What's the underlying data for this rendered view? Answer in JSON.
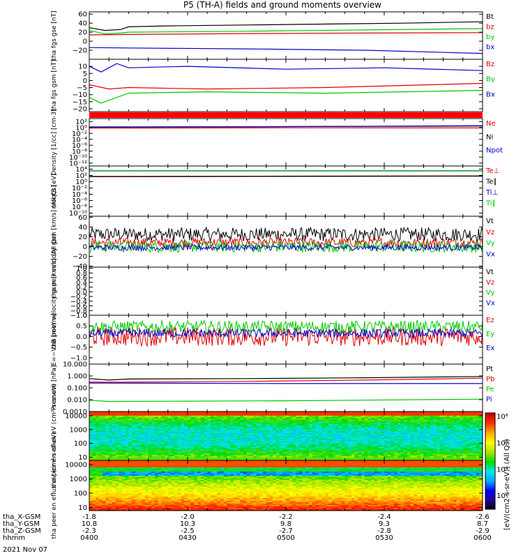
{
  "title": "P5 (TH-A) fields and ground moments overview",
  "date_label": "2021 Nov 07",
  "colorbar_label": "[eV/(cm2-s-sr-eV)] (All Qs)",
  "ephemeris": {
    "rows": [
      {
        "label": "tha_X-GSM",
        "values": [
          "-1.8",
          "-2.0",
          "-2.2",
          "-2.4",
          "-2.6"
        ]
      },
      {
        "label": "tha_Y-GSM",
        "values": [
          "10.8",
          "10.3",
          "9.8",
          "9.3",
          "8.7"
        ]
      },
      {
        "label": "tha_Z-GSM",
        "values": [
          "-2.3",
          "-2.5",
          "-2.7",
          "-2.8",
          "-2.9"
        ]
      },
      {
        "label": "hhmm",
        "values": [
          "0400",
          "0430",
          "0500",
          "0530",
          "0600"
        ]
      }
    ]
  },
  "chart_data": [
    {
      "type": "line",
      "ylabel": "tha fgs gse [nT]",
      "ylim": [
        -40,
        65
      ],
      "yticks": [
        -20,
        0,
        20,
        40,
        60
      ],
      "ytick_labels": [
        "−20",
        "0",
        "20",
        "40",
        "60"
      ],
      "series": [
        {
          "name": "Bt",
          "color": "#000000",
          "x": [
            0,
            0.04,
            0.08,
            0.1,
            0.2,
            0.4,
            0.6,
            0.8,
            1.0
          ],
          "values": [
            30,
            24,
            26,
            32,
            34,
            36,
            38,
            40,
            43
          ]
        },
        {
          "name": "bz",
          "color": "#e00000",
          "x": [
            0,
            0.1,
            0.4,
            0.7,
            1.0
          ],
          "values": [
            14,
            15,
            17,
            18,
            19
          ]
        },
        {
          "name": "by",
          "color": "#00c800",
          "x": [
            0,
            0.04,
            0.08,
            0.1,
            0.4,
            0.7,
            1.0
          ],
          "values": [
            24,
            16,
            18,
            20,
            22,
            25,
            28
          ]
        },
        {
          "name": "bx",
          "color": "#0000d0",
          "x": [
            0,
            0.1,
            0.4,
            0.7,
            1.0
          ],
          "values": [
            -14,
            -15,
            -17,
            -20,
            -27
          ]
        }
      ]
    },
    {
      "type": "line",
      "ylabel": "tha fgs gsm [nT]",
      "ylim": [
        -22,
        15
      ],
      "yticks": [
        -20,
        -15,
        -10,
        -5,
        0,
        5,
        10
      ],
      "ytick_labels": [
        "−20",
        "−15",
        "−10",
        "−5",
        "0",
        "5",
        "10"
      ],
      "series": [
        {
          "name": "Bz",
          "color": "#e00000",
          "x": [
            0,
            0.05,
            0.1,
            0.3,
            0.6,
            1.0
          ],
          "values": [
            -3,
            -6,
            -5,
            -6,
            -5,
            -2
          ]
        },
        {
          "name": "By",
          "color": "#00c800",
          "x": [
            0,
            0.03,
            0.06,
            0.1,
            0.3,
            0.6,
            1.0
          ],
          "values": [
            -12,
            -16,
            -13,
            -9,
            -8,
            -9,
            -7
          ]
        },
        {
          "name": "Bx",
          "color": "#0000d0",
          "x": [
            0,
            0.03,
            0.07,
            0.1,
            0.25,
            0.5,
            0.75,
            1.0
          ],
          "values": [
            10,
            6,
            12,
            9,
            10,
            8,
            9,
            7
          ]
        }
      ]
    },
    {
      "type": "line",
      "ylabel": "Density [1/cc] [cm-3]",
      "yscale": "log",
      "ylim": [
        1e-13,
        1000
      ],
      "yticks": [
        1e-12,
        1e-10,
        1e-08,
        1e-06,
        0.0001,
        0.01,
        1,
        100
      ],
      "ytick_labels": [
        "10⁻¹²",
        "10⁻¹⁰",
        "10⁻⁸",
        "10⁻⁶",
        "10⁻⁴",
        "10⁻²",
        "10⁰",
        "10²"
      ],
      "series": [
        {
          "name": "Ne",
          "color": "#e00000",
          "x": [
            0,
            0.5,
            1.0
          ],
          "values": [
            0.6,
            0.8,
            0.7
          ]
        },
        {
          "name": "Ni",
          "color": "#000000",
          "x": [
            0,
            0.5,
            1.0
          ],
          "values": [
            1.5,
            2,
            3
          ]
        },
        {
          "name": "Npot",
          "color": "#0000d0",
          "x": [
            0,
            0.5,
            1.0
          ],
          "values": [
            1.2,
            2,
            4
          ]
        }
      ]
    },
    {
      "type": "line",
      "ylabel": "moqt3 [eV]",
      "yscale": "log",
      "ylim": [
        1e-11,
        100000.0
      ],
      "yticks": [
        1e-10,
        1e-08,
        1e-06,
        0.0001,
        0.01,
        1,
        100,
        10000
      ],
      "ytick_labels": [
        "10⁻¹⁰",
        "10⁻⁸",
        "10⁻⁶",
        "10⁻⁴",
        "10⁻²",
        "10⁰",
        "10²",
        "10⁴"
      ],
      "series": [
        {
          "name": "Te⊥",
          "color": "#e00000",
          "x": [
            0,
            0.5,
            1.0
          ],
          "values": [
            50,
            60,
            70
          ]
        },
        {
          "name": "Te∥",
          "color": "#000000",
          "x": [
            0,
            0.5,
            1.0
          ],
          "values": [
            40,
            50,
            60
          ]
        },
        {
          "name": "Ti⊥",
          "color": "#0000d0",
          "x": [
            0,
            0.5,
            1.0
          ],
          "values": [
            3000,
            3000,
            3000
          ]
        },
        {
          "name": "Ti∥",
          "color": "#00c800",
          "x": [
            0,
            0.5,
            1.0
          ],
          "values": [
            2500,
            2500,
            2500
          ]
        }
      ]
    },
    {
      "type": "line",
      "ylabel": "tha peir velocity gsm [km/s] (All Qs)",
      "ylim": [
        -42,
        62
      ],
      "yticks": [
        -40,
        -20,
        0,
        20,
        40,
        60
      ],
      "ytick_labels": [
        "−40",
        "−20",
        "0",
        "20",
        "40",
        "60"
      ],
      "series": [
        {
          "name": "Vt",
          "color": "#000000",
          "noise": true,
          "center": 25,
          "amp": 14
        },
        {
          "name": "Vz",
          "color": "#e00000",
          "noise": true,
          "center": 8,
          "amp": 10
        },
        {
          "name": "Vy",
          "color": "#00c800",
          "noise": true,
          "center": 0,
          "amp": 12
        },
        {
          "name": "Vx",
          "color": "#0000d0",
          "noise": true,
          "center": -2,
          "amp": 6
        }
      ]
    },
    {
      "type": "line",
      "ylabel": "tha peer velocity gsm [km/s] (All Qs)",
      "ylim": [
        -1,
        1.05
      ],
      "yticks": [
        -1,
        -0.8,
        -0.6,
        -0.4,
        -0.2,
        0,
        0.2,
        0.4,
        0.6,
        0.8,
        1.0
      ],
      "ytick_labels": [
        "−1.0",
        "−0.8",
        "−0.6",
        "−0.4",
        "−0.2",
        "0.0",
        "0.2",
        "0.4",
        "0.6",
        "0.8",
        "1.0"
      ],
      "series": [
        {
          "name": "Vt",
          "color": "#000000",
          "x": [],
          "values": []
        },
        {
          "name": "Vz",
          "color": "#e00000",
          "x": [],
          "values": []
        },
        {
          "name": "Vy",
          "color": "#00c800",
          "x": [],
          "values": []
        },
        {
          "name": "Vx",
          "color": "#0000d0",
          "x": [],
          "values": []
        }
      ]
    },
    {
      "type": "line",
      "ylabel": "E=−VxB [mV/m]",
      "ylim": [
        -1.3,
        1.0
      ],
      "yticks": [
        -1.0,
        -0.5,
        0,
        0.5,
        1.0
      ],
      "ytick_labels": [
        "−1.0",
        "−0.5",
        "0.0",
        "0.5",
        "1.0"
      ],
      "series": [
        {
          "name": "Ez",
          "color": "#e00000",
          "noise": true,
          "center": 0.0,
          "amp": 0.45
        },
        {
          "name": "Ey",
          "color": "#00c800",
          "noise": true,
          "center": 0.45,
          "amp": 0.3
        },
        {
          "name": "Ex",
          "color": "#0000d0",
          "noise": true,
          "center": 0.15,
          "amp": 0.2
        }
      ]
    },
    {
      "type": "line",
      "ylabel": "Pressure [nPa]",
      "yscale": "log",
      "ylim": [
        0.001,
        10
      ],
      "yticks": [
        0.001,
        0.01,
        0.1,
        1,
        10
      ],
      "ytick_labels": [
        "0.0010",
        "0.010",
        "0.100",
        "1.000",
        "10.000"
      ],
      "series": [
        {
          "name": "Pt",
          "color": "#000000",
          "x": [
            0,
            0.05,
            0.1,
            0.4,
            0.7,
            1.0
          ],
          "values": [
            0.6,
            0.45,
            0.55,
            0.6,
            0.7,
            0.9
          ]
        },
        {
          "name": "Pb",
          "color": "#e00000",
          "x": [
            0,
            0.1,
            0.4,
            0.7,
            1.0
          ],
          "values": [
            0.3,
            0.3,
            0.35,
            0.45,
            0.65
          ]
        },
        {
          "name": "Pe",
          "color": "#00c800",
          "x": [
            0,
            0.05,
            0.5,
            1.0
          ],
          "values": [
            0.009,
            0.007,
            0.008,
            0.011
          ]
        },
        {
          "name": "Pi",
          "color": "#0000d0",
          "x": [
            0,
            0.5,
            1.0
          ],
          "values": [
            0.25,
            0.23,
            0.23
          ]
        }
      ]
    },
    {
      "type": "heatmap",
      "ylabel": "tha peir en eflux eV (cm²-s-sr-eV)",
      "yscale": "log",
      "ylim": [
        6,
        20000
      ],
      "yticks": [
        10,
        100,
        1000,
        10000
      ],
      "ytick_labels": [
        "10",
        "100",
        "1000",
        "10000"
      ],
      "colorscale_log_range": [
        1,
        8
      ],
      "description": "ion energy flux spectrogram"
    },
    {
      "type": "heatmap",
      "ylabel": "tha peer en eflux eV (cm²-s-sr-eV)",
      "yscale": "log",
      "ylim": [
        6,
        20000
      ],
      "yticks": [
        10,
        100,
        1000,
        10000
      ],
      "ytick_labels": [
        "10",
        "100",
        "1000",
        "10000"
      ],
      "colorscale_log_range": [
        1,
        8
      ],
      "description": "electron energy flux spectrogram"
    }
  ],
  "colorbar": {
    "ticks": [
      2,
      4,
      6,
      8
    ],
    "tick_labels": [
      "10²",
      "10⁴",
      "10⁶",
      "10⁸"
    ],
    "colors": [
      "#000000",
      "#1a00a0",
      "#0000ff",
      "#00a0ff",
      "#00e0e0",
      "#00e000",
      "#a0e000",
      "#ffff00",
      "#ffb000",
      "#ff3000",
      "#cc0000",
      "#ffffff"
    ]
  }
}
